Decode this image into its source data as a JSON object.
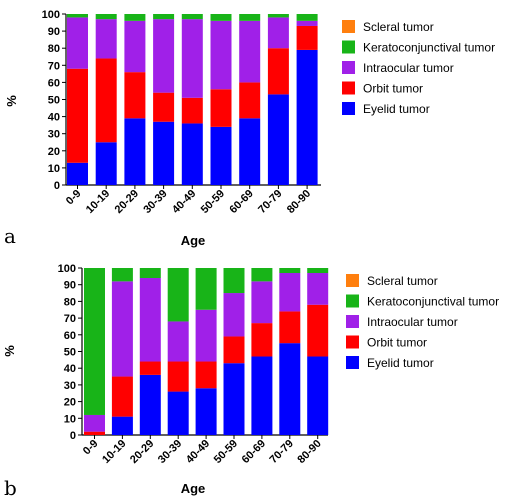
{
  "figure": {
    "colors": {
      "Scleral tumor": "#ff7f0e",
      "Keratoconjunctival tumor": "#18b418",
      "Intraocular tumor": "#a020e8",
      "Orbit tumor": "#ff0000",
      "Eyelid tumor": "#0000ff"
    }
  },
  "chart_data": [
    {
      "type": "bar",
      "stacked": true,
      "panel_label": "a",
      "xlabel": "Age",
      "ylabel": "%",
      "ylim": [
        0,
        100
      ],
      "yticks": [
        0,
        10,
        20,
        30,
        40,
        50,
        60,
        70,
        80,
        90,
        100
      ],
      "categories": [
        "0-9",
        "10-19",
        "20-29",
        "30-39",
        "40-49",
        "50-59",
        "60-69",
        "70-79",
        "80-90"
      ],
      "legend": [
        "Scleral tumor",
        "Keratoconjunctival tumor",
        "Intraocular tumor",
        "Orbit tumor",
        "Eyelid tumor"
      ],
      "legend_position": "right",
      "series": [
        {
          "name": "Eyelid tumor",
          "values": [
            13,
            25,
            39,
            37,
            36,
            34,
            39,
            53,
            79
          ]
        },
        {
          "name": "Orbit tumor",
          "values": [
            55,
            49,
            27,
            17,
            15,
            22,
            21,
            27,
            14
          ]
        },
        {
          "name": "Intraocular tumor",
          "values": [
            30,
            23,
            30,
            43,
            46,
            40,
            36,
            18,
            3
          ]
        },
        {
          "name": "Keratoconjunctival tumor",
          "values": [
            2,
            3,
            4,
            3,
            3,
            4,
            4,
            2,
            4
          ]
        },
        {
          "name": "Scleral tumor",
          "values": [
            0,
            0,
            0,
            0,
            0,
            0,
            0,
            0,
            0
          ]
        }
      ]
    },
    {
      "type": "bar",
      "stacked": true,
      "panel_label": "b",
      "xlabel": "Age",
      "ylabel": "%",
      "ylim": [
        0,
        100
      ],
      "yticks": [
        0,
        10,
        20,
        30,
        40,
        50,
        60,
        70,
        80,
        90,
        100
      ],
      "categories": [
        "0-9",
        "10-19",
        "20-29",
        "30-39",
        "40-49",
        "50-59",
        "60-69",
        "70-79",
        "80-90"
      ],
      "legend": [
        "Scleral tumor",
        "Keratoconjunctival tumor",
        "Intraocular tumor",
        "Orbit tumor",
        "Eyelid tumor"
      ],
      "legend_position": "right",
      "series": [
        {
          "name": "Eyelid tumor",
          "values": [
            0,
            11,
            36,
            26,
            28,
            43,
            47,
            55,
            47
          ]
        },
        {
          "name": "Orbit tumor",
          "values": [
            2,
            24,
            8,
            18,
            16,
            16,
            20,
            19,
            31
          ]
        },
        {
          "name": "Intraocular tumor",
          "values": [
            10,
            57,
            50,
            24,
            31,
            26,
            25,
            23,
            19
          ]
        },
        {
          "name": "Keratoconjunctival tumor",
          "values": [
            88,
            8,
            6,
            32,
            25,
            15,
            8,
            3,
            3
          ]
        },
        {
          "name": "Scleral tumor",
          "values": [
            0,
            0,
            0,
            0,
            0,
            0,
            0,
            0,
            0
          ]
        }
      ]
    }
  ]
}
